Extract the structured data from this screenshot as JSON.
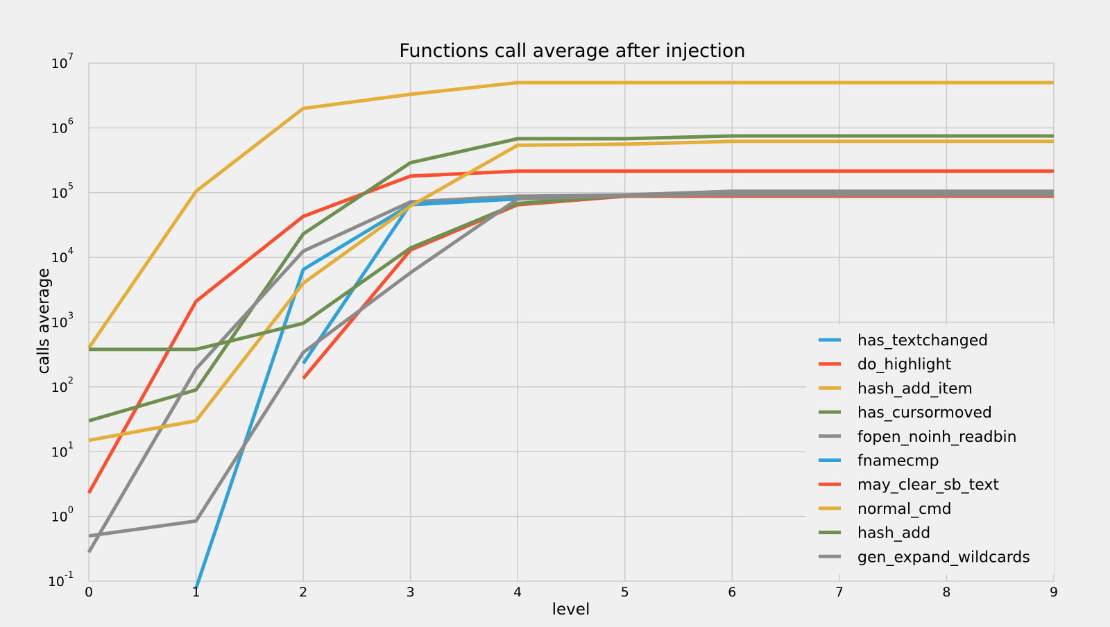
{
  "chart_data": {
    "type": "line",
    "title": "Functions call average after injection",
    "xlabel": "level",
    "ylabel": "calls average",
    "x": [
      0,
      1,
      2,
      3,
      4,
      5,
      6,
      7,
      8,
      9
    ],
    "x_ticks": [
      "0",
      "1",
      "2",
      "3",
      "4",
      "5",
      "6",
      "7",
      "8",
      "9"
    ],
    "xlim": [
      0,
      9
    ],
    "y_scale": "log",
    "ylim": [
      0.1,
      10000000
    ],
    "y_ticks": [
      {
        "value": 0.1,
        "base": "10",
        "exp": "-1"
      },
      {
        "value": 1,
        "base": "10",
        "exp": "0"
      },
      {
        "value": 10,
        "base": "10",
        "exp": "1"
      },
      {
        "value": 100,
        "base": "10",
        "exp": "2"
      },
      {
        "value": 1000,
        "base": "10",
        "exp": "3"
      },
      {
        "value": 10000,
        "base": "10",
        "exp": "4"
      },
      {
        "value": 100000,
        "base": "10",
        "exp": "5"
      },
      {
        "value": 1000000,
        "base": "10",
        "exp": "6"
      },
      {
        "value": 10000000,
        "base": "10",
        "exp": "7"
      }
    ],
    "grid": true,
    "legend_position": "lower-right",
    "series": [
      {
        "name": "has_textchanged",
        "color": "#30a2da",
        "values": [
          null,
          0,
          6500,
          65000,
          80000,
          90000,
          95000,
          95000,
          95000,
          95000
        ]
      },
      {
        "name": "do_highlight",
        "color": "#fc4f30",
        "values": [
          2.3,
          2100,
          43000,
          180000,
          215000,
          215000,
          215000,
          215000,
          215000,
          215000
        ]
      },
      {
        "name": "hash_add_item",
        "color": "#e5ae38",
        "values": [
          400,
          105000,
          2000000,
          3300000,
          5000000,
          5000000,
          5000000,
          5000000,
          5000000,
          5000000
        ]
      },
      {
        "name": "has_cursormoved",
        "color": "#6d904f",
        "values": [
          30,
          90,
          23000,
          290000,
          680000,
          680000,
          750000,
          750000,
          750000,
          750000
        ]
      },
      {
        "name": "fopen_noinh_readbin",
        "color": "#8b8b8b",
        "values": [
          0.28,
          190,
          12500,
          72000,
          88000,
          92000,
          105000,
          105000,
          105000,
          105000
        ]
      },
      {
        "name": "fnamecmp",
        "color": "#30a2da",
        "values": [
          null,
          null,
          230,
          67000,
          80000,
          90000,
          92000,
          92000,
          92000,
          92000
        ]
      },
      {
        "name": "may_clear_sb_text",
        "color": "#fc4f30",
        "values": [
          null,
          null,
          135,
          13000,
          65000,
          88000,
          88000,
          88000,
          88000,
          88000
        ]
      },
      {
        "name": "normal_cmd",
        "color": "#e5ae38",
        "values": [
          15,
          30,
          4000,
          62000,
          540000,
          560000,
          620000,
          620000,
          620000,
          620000
        ]
      },
      {
        "name": "hash_add",
        "color": "#6d904f",
        "values": [
          380,
          380,
          960,
          14000,
          68000,
          90000,
          93000,
          93000,
          93000,
          93000
        ]
      },
      {
        "name": "gen_expand_wildcards",
        "color": "#8b8b8b",
        "values": [
          0.5,
          0.85,
          340,
          5800,
          80000,
          90000,
          92000,
          92000,
          92000,
          92000
        ]
      }
    ],
    "colors": {
      "background": "#f0f0f0",
      "grid": "#cbcbcb",
      "text": "#000000"
    }
  }
}
